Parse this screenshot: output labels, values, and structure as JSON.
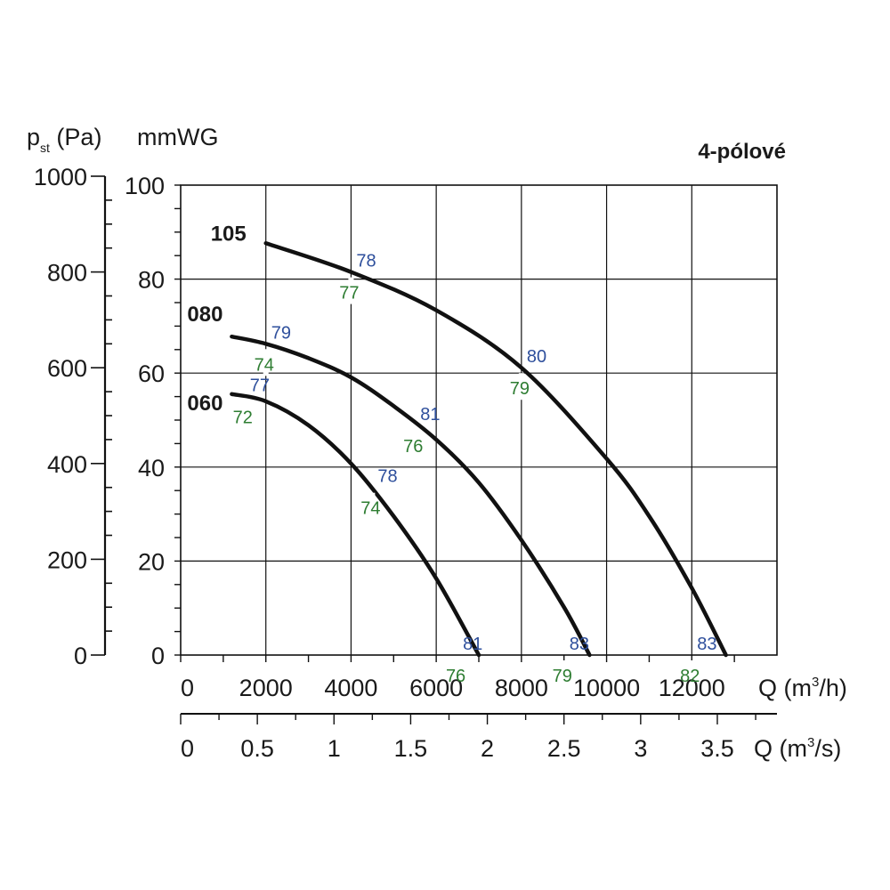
{
  "chart_data": {
    "type": "line",
    "title": "4-pólové",
    "y_label_left": "p",
    "y_label_left_sub": "st",
    "y_label_left_unit": " (Pa)",
    "y_label_right": "mmWG",
    "x_label_primary": "Q (m",
    "x_label_primary_sup": "3",
    "x_label_primary_end": "/h)",
    "x_label_secondary": "Q (m",
    "x_label_secondary_sup": "3",
    "x_label_secondary_end": "/s)",
    "x_range": [
      0,
      14000
    ],
    "x_ticks": [
      {
        "value": 0,
        "label": "0"
      },
      {
        "value": 2000,
        "label": "2000"
      },
      {
        "value": 4000,
        "label": "4000"
      },
      {
        "value": 6000,
        "label": "6000"
      },
      {
        "value": 8000,
        "label": "8000"
      },
      {
        "value": 10000,
        "label": "10000"
      },
      {
        "value": 12000,
        "label": "12000"
      }
    ],
    "x2_range": [
      0,
      3.889
    ],
    "x2_ticks": [
      {
        "value": 0,
        "label": "0"
      },
      {
        "value": 0.5,
        "label": "0.5"
      },
      {
        "value": 1,
        "label": "1"
      },
      {
        "value": 1.5,
        "label": "1.5"
      },
      {
        "value": 2,
        "label": "2"
      },
      {
        "value": 2.5,
        "label": "2.5"
      },
      {
        "value": 3,
        "label": "3"
      },
      {
        "value": 3.5,
        "label": "3.5"
      }
    ],
    "y_pa_range": [
      0,
      1000
    ],
    "y_pa_ticks": [
      {
        "value": 0,
        "label": "0"
      },
      {
        "value": 200,
        "label": "200"
      },
      {
        "value": 400,
        "label": "400"
      },
      {
        "value": 600,
        "label": "600"
      },
      {
        "value": 800,
        "label": "800"
      },
      {
        "value": 1000,
        "label": "1000"
      }
    ],
    "y_mm_range": [
      0,
      100
    ],
    "y_mm_ticks": [
      {
        "value": 0,
        "label": "0"
      },
      {
        "value": 20,
        "label": "20"
      },
      {
        "value": 40,
        "label": "40"
      },
      {
        "value": 60,
        "label": "60"
      },
      {
        "value": 80,
        "label": "80"
      },
      {
        "value": 100,
        "label": "100"
      }
    ],
    "grid": true,
    "series": [
      {
        "name": "105",
        "points": [
          [
            2000,
            860
          ],
          [
            4000,
            800
          ],
          [
            6000,
            720
          ],
          [
            8000,
            600
          ],
          [
            10000,
            410
          ],
          [
            11000,
            290
          ],
          [
            12000,
            140
          ],
          [
            12800,
            0
          ]
        ],
        "annotations": [
          {
            "x": 4000,
            "y": 800,
            "top": "78",
            "bottom": "77"
          },
          {
            "x": 8000,
            "y": 600,
            "top": "80",
            "bottom": "79"
          },
          {
            "x": 12000,
            "y": 0,
            "top": "83",
            "bottom": "82"
          }
        ]
      },
      {
        "name": "080",
        "points": [
          [
            1200,
            665
          ],
          [
            2000,
            650
          ],
          [
            3000,
            620
          ],
          [
            4000,
            580
          ],
          [
            5000,
            520
          ],
          [
            6000,
            450
          ],
          [
            7000,
            360
          ],
          [
            8000,
            240
          ],
          [
            9000,
            100
          ],
          [
            9600,
            0
          ]
        ],
        "annotations": [
          {
            "x": 2000,
            "y": 650,
            "top": "79",
            "bottom": "74"
          },
          {
            "x": 5500,
            "y": 480,
            "top": "81",
            "bottom": "76"
          },
          {
            "x": 9000,
            "y": 0,
            "top": "83",
            "bottom": "79"
          }
        ]
      },
      {
        "name": "060",
        "points": [
          [
            1200,
            545
          ],
          [
            2000,
            530
          ],
          [
            3000,
            480
          ],
          [
            4000,
            400
          ],
          [
            5000,
            290
          ],
          [
            6000,
            160
          ],
          [
            7000,
            0
          ]
        ],
        "annotations": [
          {
            "x": 1500,
            "y": 540,
            "top": "77",
            "bottom": "72"
          },
          {
            "x": 4500,
            "y": 350,
            "top": "78",
            "bottom": "74"
          },
          {
            "x": 6500,
            "y": 0,
            "top": "81",
            "bottom": "76"
          }
        ]
      }
    ],
    "colors": {
      "top_annotation": "#2e4f9c",
      "bottom_annotation": "#2e7d32",
      "curve": "#111111",
      "grid": "#111111"
    }
  }
}
